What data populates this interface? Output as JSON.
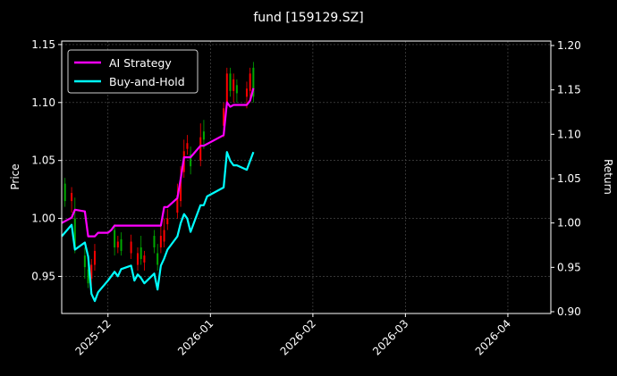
{
  "chart_data": {
    "type": "line",
    "title": "fund [159129.SZ]",
    "xlabel": "",
    "ylabel_left": "Price",
    "ylabel_right": "Return",
    "x_ticks": [
      "2025-12",
      "2026-01",
      "2026-02",
      "2026-03",
      "2026-04"
    ],
    "xlim": [
      "2025-11-17",
      "2026-04-14"
    ],
    "ylim_left": [
      0.918,
      1.153
    ],
    "ylim_right": [
      0.898,
      1.205
    ],
    "yticks_left": [
      0.95,
      1.0,
      1.05,
      1.1,
      1.15
    ],
    "yticks_right": [
      0.9,
      0.95,
      1.0,
      1.05,
      1.1,
      1.15,
      1.2
    ],
    "grid": true,
    "legend_position": "upper-left",
    "colors": {
      "ai": "#ff00ff",
      "bh": "#00ffff",
      "up": "#ff0000",
      "down": "#00aa00",
      "background": "#000000"
    },
    "series": [
      {
        "name": "AI Strategy",
        "axis": "right",
        "x": [
          "2025-11-17",
          "2025-11-20",
          "2025-11-21",
          "2025-11-24",
          "2025-11-25",
          "2025-11-26",
          "2025-11-27",
          "2025-11-28",
          "2025-12-01",
          "2025-12-02",
          "2025-12-03",
          "2025-12-04",
          "2025-12-05",
          "2025-12-08",
          "2025-12-09",
          "2025-12-10",
          "2025-12-11",
          "2025-12-12",
          "2025-12-15",
          "2025-12-16",
          "2025-12-17",
          "2025-12-18",
          "2025-12-19",
          "2025-12-22",
          "2025-12-23",
          "2025-12-24",
          "2025-12-25",
          "2025-12-26",
          "2025-12-29",
          "2025-12-30",
          "2025-12-31",
          "2026-01-05",
          "2026-01-06",
          "2026-01-07",
          "2026-01-08",
          "2026-01-09",
          "2026-01-12",
          "2026-01-13",
          "2026-01-14"
        ],
        "values": [
          1.0,
          1.006,
          1.015,
          1.013,
          0.985,
          0.985,
          0.985,
          0.989,
          0.989,
          0.992,
          0.997,
          0.997,
          0.997,
          0.997,
          0.997,
          0.997,
          0.997,
          0.997,
          0.997,
          0.997,
          0.997,
          1.018,
          1.018,
          1.028,
          1.05,
          1.074,
          1.074,
          1.074,
          1.087,
          1.087,
          1.089,
          1.099,
          1.136,
          1.131,
          1.133,
          1.133,
          1.133,
          1.138,
          1.152
        ]
      },
      {
        "name": "Buy-and-Hold",
        "axis": "right",
        "x": [
          "2025-11-17",
          "2025-11-20",
          "2025-11-21",
          "2025-11-24",
          "2025-11-25",
          "2025-11-26",
          "2025-11-27",
          "2025-11-28",
          "2025-12-01",
          "2025-12-02",
          "2025-12-03",
          "2025-12-04",
          "2025-12-05",
          "2025-12-08",
          "2025-12-09",
          "2025-12-10",
          "2025-12-11",
          "2025-12-12",
          "2025-12-15",
          "2025-12-16",
          "2025-12-17",
          "2025-12-18",
          "2025-12-19",
          "2025-12-22",
          "2025-12-23",
          "2025-12-24",
          "2025-12-25",
          "2025-12-26",
          "2025-12-29",
          "2025-12-30",
          "2025-12-31",
          "2026-01-05",
          "2026-01-06",
          "2026-01-07",
          "2026-01-08",
          "2026-01-09",
          "2026-01-12",
          "2026-01-13",
          "2026-01-14"
        ],
        "values": [
          0.985,
          0.998,
          0.97,
          0.978,
          0.962,
          0.92,
          0.912,
          0.922,
          0.935,
          0.94,
          0.945,
          0.94,
          0.948,
          0.952,
          0.935,
          0.942,
          0.938,
          0.932,
          0.943,
          0.925,
          0.952,
          0.96,
          0.97,
          0.985,
          1.0,
          1.01,
          1.005,
          0.99,
          1.02,
          1.02,
          1.03,
          1.04,
          1.08,
          1.07,
          1.065,
          1.065,
          1.06,
          1.07,
          1.08
        ]
      }
    ],
    "candles_left_axis": [
      {
        "x": "2025-11-18",
        "o": 1.03,
        "c": 1.015,
        "h": 1.035,
        "l": 1.01
      },
      {
        "x": "2025-11-20",
        "o": 1.015,
        "c": 1.022,
        "h": 1.027,
        "l": 1.005
      },
      {
        "x": "2025-11-21",
        "o": 1.0,
        "c": 0.975,
        "h": 1.018,
        "l": 0.97
      },
      {
        "x": "2025-11-24",
        "o": 0.968,
        "c": 0.958,
        "h": 0.975,
        "l": 0.948
      },
      {
        "x": "2025-11-25",
        "o": 0.956,
        "c": 0.944,
        "h": 0.962,
        "l": 0.94
      },
      {
        "x": "2025-11-26",
        "o": 0.948,
        "c": 0.96,
        "h": 0.965,
        "l": 0.942
      },
      {
        "x": "2025-11-27",
        "o": 0.96,
        "c": 0.972,
        "h": 0.978,
        "l": 0.955
      },
      {
        "x": "2025-12-03",
        "o": 0.99,
        "c": 0.975,
        "h": 0.995,
        "l": 0.968
      },
      {
        "x": "2025-12-04",
        "o": 0.975,
        "c": 0.98,
        "h": 0.985,
        "l": 0.97
      },
      {
        "x": "2025-12-05",
        "o": 0.982,
        "c": 0.972,
        "h": 0.988,
        "l": 0.968
      },
      {
        "x": "2025-12-08",
        "o": 0.97,
        "c": 0.98,
        "h": 0.986,
        "l": 0.965
      },
      {
        "x": "2025-12-10",
        "o": 0.96,
        "c": 0.97,
        "h": 0.975,
        "l": 0.955
      },
      {
        "x": "2025-12-11",
        "o": 0.975,
        "c": 0.965,
        "h": 0.985,
        "l": 0.96
      },
      {
        "x": "2025-12-12",
        "o": 0.962,
        "c": 0.968,
        "h": 0.972,
        "l": 0.955
      },
      {
        "x": "2025-12-15",
        "o": 0.985,
        "c": 0.975,
        "h": 0.99,
        "l": 0.97
      },
      {
        "x": "2025-12-16",
        "o": 0.97,
        "c": 0.96,
        "h": 0.978,
        "l": 0.955
      },
      {
        "x": "2025-12-17",
        "o": 0.975,
        "c": 0.985,
        "h": 0.995,
        "l": 0.97
      },
      {
        "x": "2025-12-18",
        "o": 0.98,
        "c": 0.99,
        "h": 1.0,
        "l": 0.975
      },
      {
        "x": "2025-12-19",
        "o": 0.995,
        "c": 1.0,
        "h": 1.008,
        "l": 0.99
      },
      {
        "x": "2025-12-22",
        "o": 1.005,
        "c": 1.02,
        "h": 1.03,
        "l": 1.0
      },
      {
        "x": "2025-12-23",
        "o": 1.015,
        "c": 1.035,
        "h": 1.045,
        "l": 1.01
      },
      {
        "x": "2025-12-24",
        "o": 1.04,
        "c": 1.058,
        "h": 1.068,
        "l": 1.035
      },
      {
        "x": "2025-12-25",
        "o": 1.06,
        "c": 1.065,
        "h": 1.072,
        "l": 1.055
      },
      {
        "x": "2025-12-26",
        "o": 1.055,
        "c": 1.045,
        "h": 1.062,
        "l": 1.038
      },
      {
        "x": "2025-12-29",
        "o": 1.05,
        "c": 1.07,
        "h": 1.082,
        "l": 1.045
      },
      {
        "x": "2025-12-30",
        "o": 1.075,
        "c": 1.068,
        "h": 1.085,
        "l": 1.06
      },
      {
        "x": "2026-01-05",
        "o": 1.08,
        "c": 1.095,
        "h": 1.1,
        "l": 1.07
      },
      {
        "x": "2026-01-06",
        "o": 1.1,
        "c": 1.125,
        "h": 1.13,
        "l": 1.095
      },
      {
        "x": "2026-01-07",
        "o": 1.125,
        "c": 1.11,
        "h": 1.13,
        "l": 1.105
      },
      {
        "x": "2026-01-08",
        "o": 1.11,
        "c": 1.12,
        "h": 1.125,
        "l": 1.1
      },
      {
        "x": "2026-01-09",
        "o": 1.115,
        "c": 1.108,
        "h": 1.12,
        "l": 1.1
      },
      {
        "x": "2026-01-12",
        "o": 1.105,
        "c": 1.112,
        "h": 1.118,
        "l": 1.095
      },
      {
        "x": "2026-01-13",
        "o": 1.11,
        "c": 1.125,
        "h": 1.13,
        "l": 1.1
      },
      {
        "x": "2026-01-14",
        "o": 1.13,
        "c": 1.105,
        "h": 1.135,
        "l": 1.1
      }
    ]
  }
}
